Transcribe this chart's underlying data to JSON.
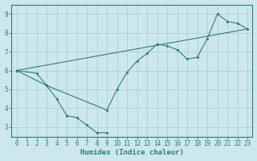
{
  "line1_x": [
    0,
    2,
    3,
    4,
    5,
    6,
    7,
    8,
    9
  ],
  "line1_y": [
    6.0,
    5.85,
    5.2,
    4.5,
    3.6,
    3.5,
    3.1,
    2.7,
    2.7
  ],
  "line2_x": [
    0,
    3,
    9,
    10,
    11,
    12,
    13,
    14,
    15,
    16,
    17,
    18,
    19,
    20,
    21,
    22,
    23
  ],
  "line2_y": [
    6.0,
    5.2,
    3.9,
    5.0,
    5.9,
    6.5,
    6.9,
    7.4,
    7.3,
    7.1,
    6.6,
    6.7,
    7.7,
    9.0,
    8.6,
    8.5,
    8.2
  ],
  "line3_x": [
    0,
    23
  ],
  "line3_y": [
    6.0,
    8.2
  ],
  "line_color": "#2e7f6e",
  "bg_color": "#cce8ec",
  "grid_color": "#aed0d5",
  "xlabel": "Humidex (Indice chaleur)",
  "xlim": [
    -0.5,
    23.5
  ],
  "ylim": [
    2.5,
    9.5
  ],
  "yticks": [
    3,
    4,
    5,
    6,
    7,
    8,
    9
  ],
  "xticks": [
    0,
    1,
    2,
    3,
    4,
    5,
    6,
    7,
    8,
    9,
    10,
    11,
    12,
    13,
    14,
    15,
    16,
    17,
    18,
    19,
    20,
    21,
    22,
    23
  ]
}
